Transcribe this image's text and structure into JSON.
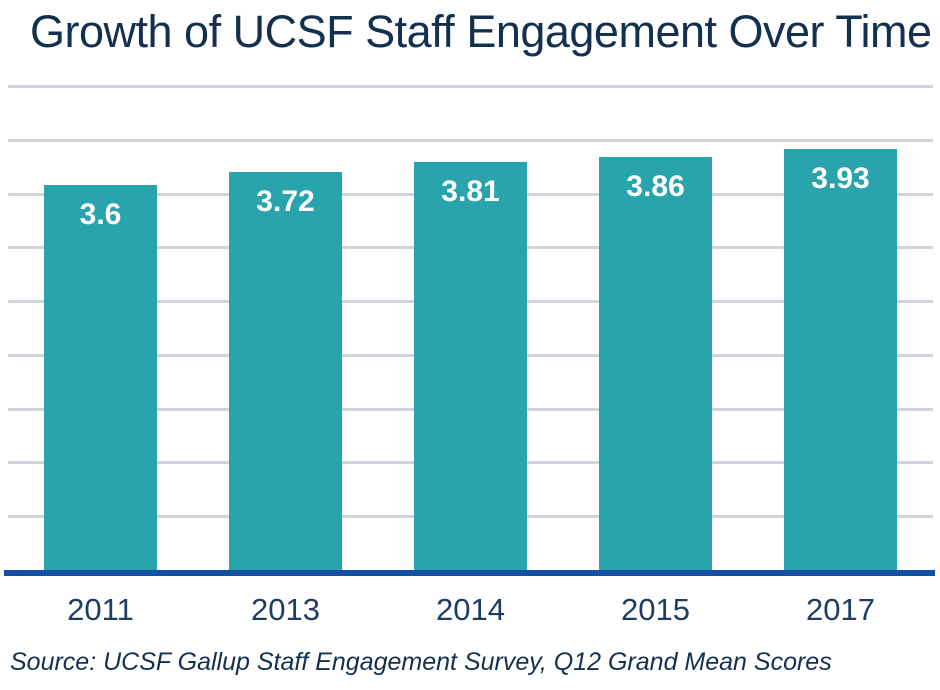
{
  "title": "Growth of UCSF Staff Engagement Over Time",
  "source_note": "Source: UCSF Gallup Staff Engagement Survey, Q12 Grand Mean Scores",
  "colors": {
    "bar": "#29a4ad",
    "axis_line": "#134fa5",
    "title_text": "#14304f",
    "tick_text": "#1d3e62",
    "gridline": "#cfd4db",
    "bar_label_text": "#ffffff",
    "background": "#ffffff"
  },
  "chart_data": {
    "type": "bar",
    "title": "Growth of UCSF Staff Engagement Over Time",
    "categories": [
      "2011",
      "2013",
      "2014",
      "2015",
      "2017"
    ],
    "values": [
      3.6,
      3.72,
      3.81,
      3.86,
      3.93
    ],
    "data_labels": [
      "3.6",
      "3.72",
      "3.81",
      "3.86",
      "3.93"
    ],
    "xlabel": "",
    "ylabel": "",
    "ylim": [
      0,
      4.5
    ],
    "gridline_step": 0.5,
    "grid": true,
    "legend": false,
    "annotations": [
      "Source: UCSF Gallup Staff Engagement Survey, Q12 Grand Mean Scores"
    ]
  }
}
